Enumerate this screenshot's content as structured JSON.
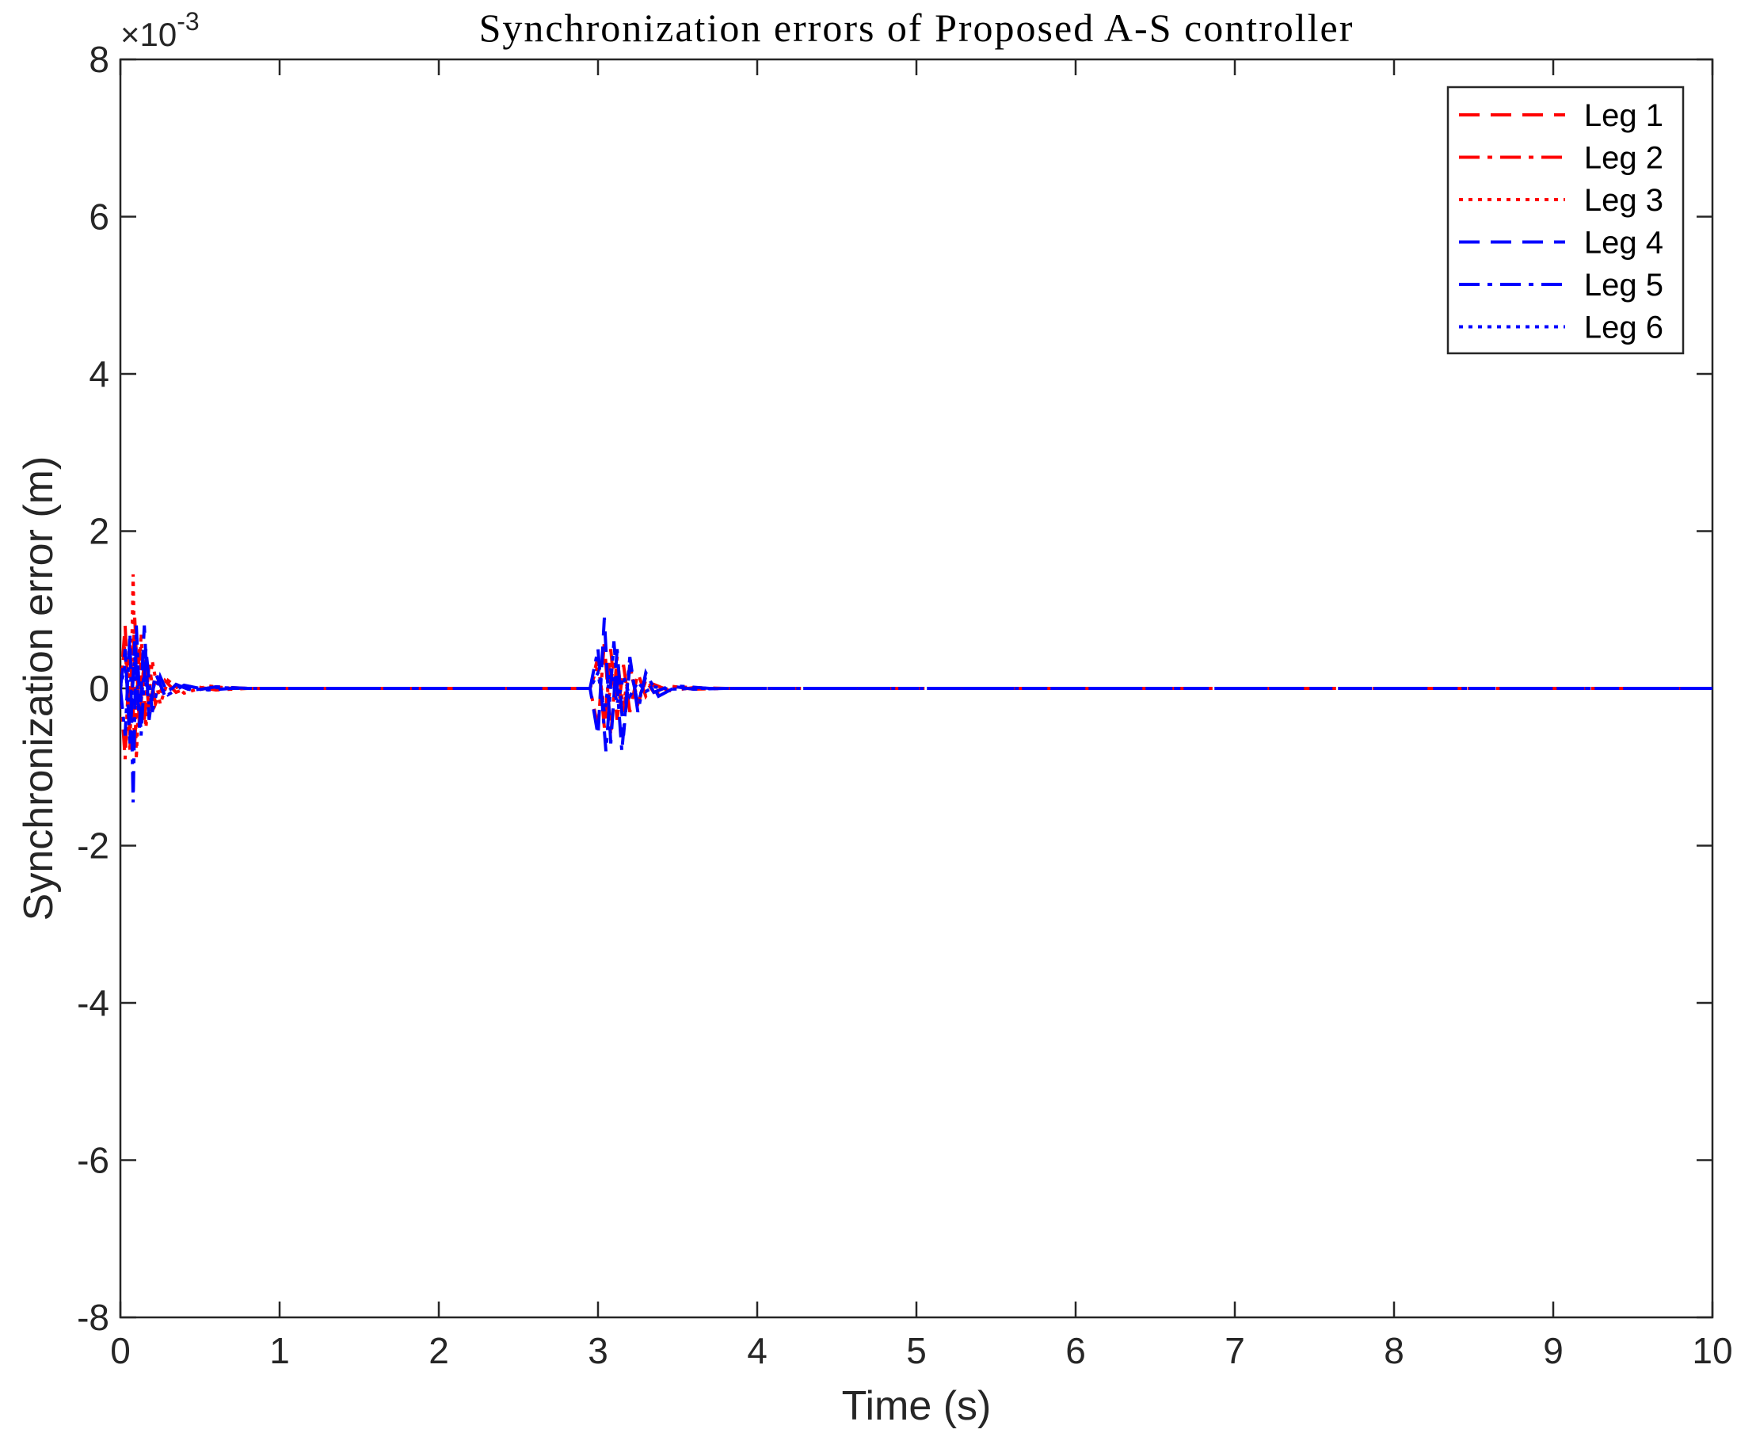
{
  "chart_data": {
    "type": "line",
    "title": "Synchronization errors of Proposed A-S controller",
    "xlabel": "Time (s)",
    "ylabel": "Synchronization error (m)",
    "y_exponent_label": "×10",
    "y_exponent_power": "-3",
    "xlim": [
      0,
      10
    ],
    "ylim": [
      -8,
      8
    ],
    "xticks": [
      "0",
      "1",
      "2",
      "3",
      "4",
      "5",
      "6",
      "7",
      "8",
      "9",
      "10"
    ],
    "yticks": [
      "-8",
      "-6",
      "-4",
      "-2",
      "0",
      "2",
      "4",
      "6",
      "8"
    ],
    "grid": false,
    "legend_position": "top-right",
    "series": [
      {
        "name": "Leg 1",
        "color": "#ff0000",
        "style": "dashed",
        "x": [
          0,
          0.03,
          0.06,
          0.09,
          0.12,
          0.15,
          0.18,
          0.22,
          0.28,
          0.35,
          0.45,
          0.6,
          0.8,
          1.2,
          2.0,
          2.95,
          3.0,
          3.04,
          3.08,
          3.12,
          3.16,
          3.2,
          3.25,
          3.3,
          3.35,
          3.45,
          3.6,
          3.8,
          4.0,
          10
        ],
        "y": [
          0,
          0.8,
          -0.6,
          0.9,
          -0.5,
          0.4,
          -0.3,
          0.2,
          -0.1,
          0.05,
          -0.03,
          0.02,
          0,
          0,
          0,
          0,
          0.4,
          -0.5,
          0.5,
          -0.4,
          0.3,
          -0.3,
          0.2,
          -0.1,
          0.05,
          -0.03,
          0.01,
          0,
          0,
          0
        ]
      },
      {
        "name": "Leg 2",
        "color": "#ff0000",
        "style": "dashdot",
        "x": [
          0,
          0.03,
          0.06,
          0.09,
          0.12,
          0.15,
          0.18,
          0.22,
          0.28,
          0.35,
          0.45,
          0.6,
          0.8,
          1.2,
          2.0,
          2.95,
          3.0,
          3.04,
          3.08,
          3.12,
          3.16,
          3.2,
          3.25,
          3.3,
          3.35,
          3.45,
          3.6,
          3.8,
          4.0,
          10
        ],
        "y": [
          0,
          -0.9,
          0.6,
          -0.7,
          0.5,
          -0.4,
          0.3,
          -0.2,
          0.1,
          -0.05,
          0.03,
          -0.02,
          0,
          0,
          0,
          0,
          -0.5,
          0.6,
          -0.6,
          0.4,
          -0.3,
          0.3,
          -0.2,
          0.1,
          -0.05,
          0.03,
          -0.01,
          0,
          0,
          0
        ]
      },
      {
        "name": "Leg 3",
        "color": "#ff0000",
        "style": "dotted",
        "x": [
          0,
          0.03,
          0.06,
          0.08,
          0.1,
          0.13,
          0.16,
          0.2,
          0.25,
          0.3,
          0.4,
          0.55,
          0.7,
          1.0,
          2.0,
          2.95,
          3.0,
          3.05,
          3.1,
          3.15,
          3.2,
          3.25,
          3.3,
          3.38,
          3.5,
          3.7,
          4.0,
          10
        ],
        "y": [
          0,
          0.6,
          -0.8,
          1.45,
          -0.9,
          0.7,
          -0.5,
          0.35,
          -0.2,
          0.1,
          -0.06,
          0.03,
          0,
          0,
          0,
          0,
          0.3,
          -0.4,
          0.35,
          -0.3,
          0.25,
          -0.15,
          0.1,
          -0.05,
          0.02,
          0,
          0,
          0
        ]
      },
      {
        "name": "Leg 4",
        "color": "#0000ff",
        "style": "dashed",
        "x": [
          0,
          0.03,
          0.06,
          0.09,
          0.12,
          0.15,
          0.18,
          0.22,
          0.28,
          0.35,
          0.45,
          0.6,
          0.8,
          1.2,
          2.0,
          2.95,
          3.0,
          3.04,
          3.08,
          3.12,
          3.16,
          3.2,
          3.25,
          3.3,
          3.35,
          3.45,
          3.6,
          3.8,
          4.0,
          10
        ],
        "y": [
          0,
          0.5,
          -0.7,
          0.6,
          -0.5,
          0.8,
          -0.4,
          0.2,
          -0.1,
          0.05,
          -0.03,
          0.02,
          0,
          0,
          0,
          0,
          -0.6,
          0.9,
          -0.7,
          0.5,
          -0.6,
          0.3,
          -0.2,
          0.15,
          -0.05,
          0.03,
          -0.01,
          0,
          0,
          0
        ]
      },
      {
        "name": "Leg 5",
        "color": "#0000ff",
        "style": "dashdot",
        "x": [
          0,
          0.03,
          0.06,
          0.08,
          0.1,
          0.13,
          0.16,
          0.2,
          0.25,
          0.3,
          0.4,
          0.55,
          0.7,
          1.0,
          2.0,
          2.95,
          3.0,
          3.05,
          3.1,
          3.15,
          3.2,
          3.25,
          3.3,
          3.38,
          3.5,
          3.7,
          4.0,
          10
        ],
        "y": [
          0,
          -0.6,
          0.7,
          -1.45,
          0.8,
          -0.6,
          0.5,
          -0.3,
          0.15,
          -0.08,
          0.04,
          -0.02,
          0,
          0,
          0,
          0,
          0.5,
          -0.8,
          0.6,
          -0.8,
          0.4,
          -0.3,
          0.2,
          -0.1,
          0.03,
          0,
          0,
          0
        ]
      },
      {
        "name": "Leg 6",
        "color": "#0000ff",
        "style": "dotted",
        "x": [
          0,
          0.03,
          0.06,
          0.09,
          0.12,
          0.15,
          0.18,
          0.22,
          0.28,
          0.35,
          0.45,
          0.6,
          0.8,
          1.2,
          2.0,
          2.95,
          3.0,
          3.04,
          3.08,
          3.12,
          3.16,
          3.2,
          3.25,
          3.3,
          3.35,
          3.45,
          3.6,
          3.8,
          4.0,
          10
        ],
        "y": [
          0,
          0.3,
          -0.4,
          0.4,
          -0.3,
          0.2,
          -0.2,
          0.1,
          -0.05,
          0.03,
          -0.02,
          0.01,
          0,
          0,
          0,
          0,
          0.2,
          -0.3,
          0.25,
          -0.2,
          0.15,
          -0.1,
          0.08,
          -0.04,
          0.02,
          -0.01,
          0,
          0,
          0,
          0
        ]
      }
    ]
  }
}
